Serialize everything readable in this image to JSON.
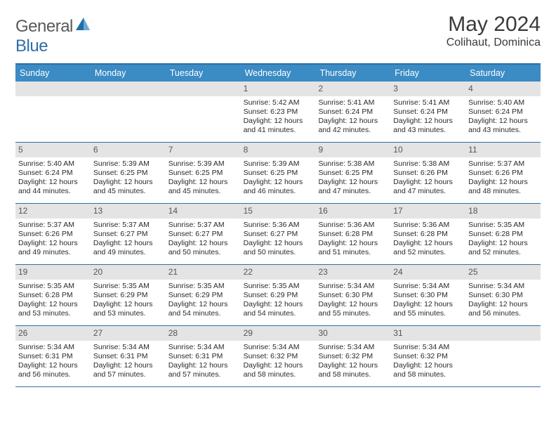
{
  "logo": {
    "general": "General",
    "blue": "Blue"
  },
  "header": {
    "title": "May 2024",
    "location": "Colihaut, Dominica"
  },
  "colors": {
    "header_bar": "#3b8bc4",
    "border": "#2f6fa7",
    "daynum_bg": "#e4e4e4",
    "text": "#2a2a2a",
    "logo_gray": "#5a5a5a",
    "logo_blue": "#2f6fa7"
  },
  "weekdays": [
    "Sunday",
    "Monday",
    "Tuesday",
    "Wednesday",
    "Thursday",
    "Friday",
    "Saturday"
  ],
  "weeks": [
    [
      {
        "n": "",
        "sr": "",
        "ss": "",
        "dl1": "",
        "dl2": ""
      },
      {
        "n": "",
        "sr": "",
        "ss": "",
        "dl1": "",
        "dl2": ""
      },
      {
        "n": "",
        "sr": "",
        "ss": "",
        "dl1": "",
        "dl2": ""
      },
      {
        "n": "1",
        "sr": "Sunrise: 5:42 AM",
        "ss": "Sunset: 6:23 PM",
        "dl1": "Daylight: 12 hours",
        "dl2": "and 41 minutes."
      },
      {
        "n": "2",
        "sr": "Sunrise: 5:41 AM",
        "ss": "Sunset: 6:24 PM",
        "dl1": "Daylight: 12 hours",
        "dl2": "and 42 minutes."
      },
      {
        "n": "3",
        "sr": "Sunrise: 5:41 AM",
        "ss": "Sunset: 6:24 PM",
        "dl1": "Daylight: 12 hours",
        "dl2": "and 43 minutes."
      },
      {
        "n": "4",
        "sr": "Sunrise: 5:40 AM",
        "ss": "Sunset: 6:24 PM",
        "dl1": "Daylight: 12 hours",
        "dl2": "and 43 minutes."
      }
    ],
    [
      {
        "n": "5",
        "sr": "Sunrise: 5:40 AM",
        "ss": "Sunset: 6:24 PM",
        "dl1": "Daylight: 12 hours",
        "dl2": "and 44 minutes."
      },
      {
        "n": "6",
        "sr": "Sunrise: 5:39 AM",
        "ss": "Sunset: 6:25 PM",
        "dl1": "Daylight: 12 hours",
        "dl2": "and 45 minutes."
      },
      {
        "n": "7",
        "sr": "Sunrise: 5:39 AM",
        "ss": "Sunset: 6:25 PM",
        "dl1": "Daylight: 12 hours",
        "dl2": "and 45 minutes."
      },
      {
        "n": "8",
        "sr": "Sunrise: 5:39 AM",
        "ss": "Sunset: 6:25 PM",
        "dl1": "Daylight: 12 hours",
        "dl2": "and 46 minutes."
      },
      {
        "n": "9",
        "sr": "Sunrise: 5:38 AM",
        "ss": "Sunset: 6:25 PM",
        "dl1": "Daylight: 12 hours",
        "dl2": "and 47 minutes."
      },
      {
        "n": "10",
        "sr": "Sunrise: 5:38 AM",
        "ss": "Sunset: 6:26 PM",
        "dl1": "Daylight: 12 hours",
        "dl2": "and 47 minutes."
      },
      {
        "n": "11",
        "sr": "Sunrise: 5:37 AM",
        "ss": "Sunset: 6:26 PM",
        "dl1": "Daylight: 12 hours",
        "dl2": "and 48 minutes."
      }
    ],
    [
      {
        "n": "12",
        "sr": "Sunrise: 5:37 AM",
        "ss": "Sunset: 6:26 PM",
        "dl1": "Daylight: 12 hours",
        "dl2": "and 49 minutes."
      },
      {
        "n": "13",
        "sr": "Sunrise: 5:37 AM",
        "ss": "Sunset: 6:27 PM",
        "dl1": "Daylight: 12 hours",
        "dl2": "and 49 minutes."
      },
      {
        "n": "14",
        "sr": "Sunrise: 5:37 AM",
        "ss": "Sunset: 6:27 PM",
        "dl1": "Daylight: 12 hours",
        "dl2": "and 50 minutes."
      },
      {
        "n": "15",
        "sr": "Sunrise: 5:36 AM",
        "ss": "Sunset: 6:27 PM",
        "dl1": "Daylight: 12 hours",
        "dl2": "and 50 minutes."
      },
      {
        "n": "16",
        "sr": "Sunrise: 5:36 AM",
        "ss": "Sunset: 6:28 PM",
        "dl1": "Daylight: 12 hours",
        "dl2": "and 51 minutes."
      },
      {
        "n": "17",
        "sr": "Sunrise: 5:36 AM",
        "ss": "Sunset: 6:28 PM",
        "dl1": "Daylight: 12 hours",
        "dl2": "and 52 minutes."
      },
      {
        "n": "18",
        "sr": "Sunrise: 5:35 AM",
        "ss": "Sunset: 6:28 PM",
        "dl1": "Daylight: 12 hours",
        "dl2": "and 52 minutes."
      }
    ],
    [
      {
        "n": "19",
        "sr": "Sunrise: 5:35 AM",
        "ss": "Sunset: 6:28 PM",
        "dl1": "Daylight: 12 hours",
        "dl2": "and 53 minutes."
      },
      {
        "n": "20",
        "sr": "Sunrise: 5:35 AM",
        "ss": "Sunset: 6:29 PM",
        "dl1": "Daylight: 12 hours",
        "dl2": "and 53 minutes."
      },
      {
        "n": "21",
        "sr": "Sunrise: 5:35 AM",
        "ss": "Sunset: 6:29 PM",
        "dl1": "Daylight: 12 hours",
        "dl2": "and 54 minutes."
      },
      {
        "n": "22",
        "sr": "Sunrise: 5:35 AM",
        "ss": "Sunset: 6:29 PM",
        "dl1": "Daylight: 12 hours",
        "dl2": "and 54 minutes."
      },
      {
        "n": "23",
        "sr": "Sunrise: 5:34 AM",
        "ss": "Sunset: 6:30 PM",
        "dl1": "Daylight: 12 hours",
        "dl2": "and 55 minutes."
      },
      {
        "n": "24",
        "sr": "Sunrise: 5:34 AM",
        "ss": "Sunset: 6:30 PM",
        "dl1": "Daylight: 12 hours",
        "dl2": "and 55 minutes."
      },
      {
        "n": "25",
        "sr": "Sunrise: 5:34 AM",
        "ss": "Sunset: 6:30 PM",
        "dl1": "Daylight: 12 hours",
        "dl2": "and 56 minutes."
      }
    ],
    [
      {
        "n": "26",
        "sr": "Sunrise: 5:34 AM",
        "ss": "Sunset: 6:31 PM",
        "dl1": "Daylight: 12 hours",
        "dl2": "and 56 minutes."
      },
      {
        "n": "27",
        "sr": "Sunrise: 5:34 AM",
        "ss": "Sunset: 6:31 PM",
        "dl1": "Daylight: 12 hours",
        "dl2": "and 57 minutes."
      },
      {
        "n": "28",
        "sr": "Sunrise: 5:34 AM",
        "ss": "Sunset: 6:31 PM",
        "dl1": "Daylight: 12 hours",
        "dl2": "and 57 minutes."
      },
      {
        "n": "29",
        "sr": "Sunrise: 5:34 AM",
        "ss": "Sunset: 6:32 PM",
        "dl1": "Daylight: 12 hours",
        "dl2": "and 58 minutes."
      },
      {
        "n": "30",
        "sr": "Sunrise: 5:34 AM",
        "ss": "Sunset: 6:32 PM",
        "dl1": "Daylight: 12 hours",
        "dl2": "and 58 minutes."
      },
      {
        "n": "31",
        "sr": "Sunrise: 5:34 AM",
        "ss": "Sunset: 6:32 PM",
        "dl1": "Daylight: 12 hours",
        "dl2": "and 58 minutes."
      },
      {
        "n": "",
        "sr": "",
        "ss": "",
        "dl1": "",
        "dl2": ""
      }
    ]
  ]
}
